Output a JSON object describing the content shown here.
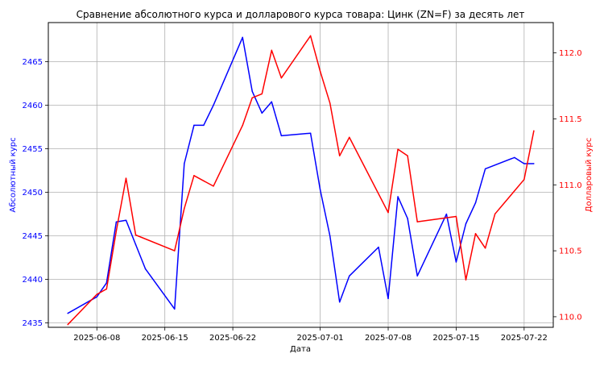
{
  "chart_data": {
    "type": "line",
    "title": "Сравнение абсолютного курса и долларового курса товара: Цинк (ZN=F) за десять лет",
    "xlabel": "Дата",
    "ylabel_left": "Абсолютный курс",
    "ylabel_right": "Долларовый курс",
    "x_tick_labels": [
      "2025-06-08",
      "2025-06-15",
      "2025-06-22",
      "2025-07-01",
      "2025-07-08",
      "2025-07-15",
      "2025-07-22"
    ],
    "y_left_tick_labels": [
      "2435",
      "2440",
      "2445",
      "2450",
      "2455",
      "2460",
      "2465"
    ],
    "y_right_tick_labels": [
      "110.0",
      "110.5",
      "111.0",
      "111.5",
      "112.0"
    ],
    "xlim": [
      "2025-06-03",
      "2025-07-25"
    ],
    "ylim_left": [
      2434.5,
      2469.5
    ],
    "ylim_right": [
      109.92,
      112.23
    ],
    "grid": true,
    "colors": {
      "left_axis": "#0000ff",
      "right_axis": "#ff0000"
    },
    "series": [
      {
        "axis": "left",
        "color": "#0000ff",
        "x": [
          "2025-06-05",
          "2025-06-08",
          "2025-06-09",
          "2025-06-10",
          "2025-06-11",
          "2025-06-12",
          "2025-06-13",
          "2025-06-16",
          "2025-06-17",
          "2025-06-18",
          "2025-06-19",
          "2025-06-20",
          "2025-06-23",
          "2025-06-24",
          "2025-06-25",
          "2025-06-26",
          "2025-06-27",
          "2025-06-30",
          "2025-07-01",
          "2025-07-02",
          "2025-07-03",
          "2025-07-04",
          "2025-07-07",
          "2025-07-08",
          "2025-07-09",
          "2025-07-10",
          "2025-07-11",
          "2025-07-14",
          "2025-07-15",
          "2025-07-16",
          "2025-07-17",
          "2025-07-18",
          "2025-07-21",
          "2025-07-22",
          "2025-07-23"
        ],
        "values": [
          2436.1,
          2438.0,
          2439.6,
          2446.6,
          2446.8,
          2444.0,
          2441.2,
          2436.6,
          2453.3,
          2457.7,
          2457.7,
          2460.0,
          2467.8,
          2461.6,
          2459.1,
          2460.4,
          2456.5,
          2456.8,
          2450.3,
          2445.0,
          2437.4,
          2440.4,
          2443.7,
          2437.8,
          2449.5,
          2447.0,
          2440.4,
          2447.5,
          2442.0,
          2446.4,
          2448.8,
          2452.7,
          2454.0,
          2453.3,
          2453.3
        ]
      },
      {
        "axis": "right",
        "color": "#ff0000",
        "x": [
          "2025-06-05",
          "2025-06-08",
          "2025-06-09",
          "2025-06-10",
          "2025-06-11",
          "2025-06-12",
          "2025-06-16",
          "2025-06-17",
          "2025-06-18",
          "2025-06-20",
          "2025-06-23",
          "2025-06-24",
          "2025-06-25",
          "2025-06-26",
          "2025-06-27",
          "2025-06-30",
          "2025-07-01",
          "2025-07-02",
          "2025-07-03",
          "2025-07-04",
          "2025-07-08",
          "2025-07-09",
          "2025-07-10",
          "2025-07-11",
          "2025-07-15",
          "2025-07-16",
          "2025-07-17",
          "2025-07-18",
          "2025-07-19",
          "2025-07-22",
          "2025-07-23"
        ],
        "values": [
          109.94,
          110.17,
          110.21,
          110.65,
          111.05,
          110.62,
          110.5,
          110.82,
          111.07,
          110.99,
          111.45,
          111.66,
          111.69,
          112.02,
          111.81,
          112.13,
          111.86,
          111.62,
          111.22,
          111.36,
          110.79,
          111.27,
          111.22,
          110.72,
          110.76,
          110.28,
          110.63,
          110.52,
          110.78,
          111.04,
          111.41
        ]
      }
    ]
  }
}
